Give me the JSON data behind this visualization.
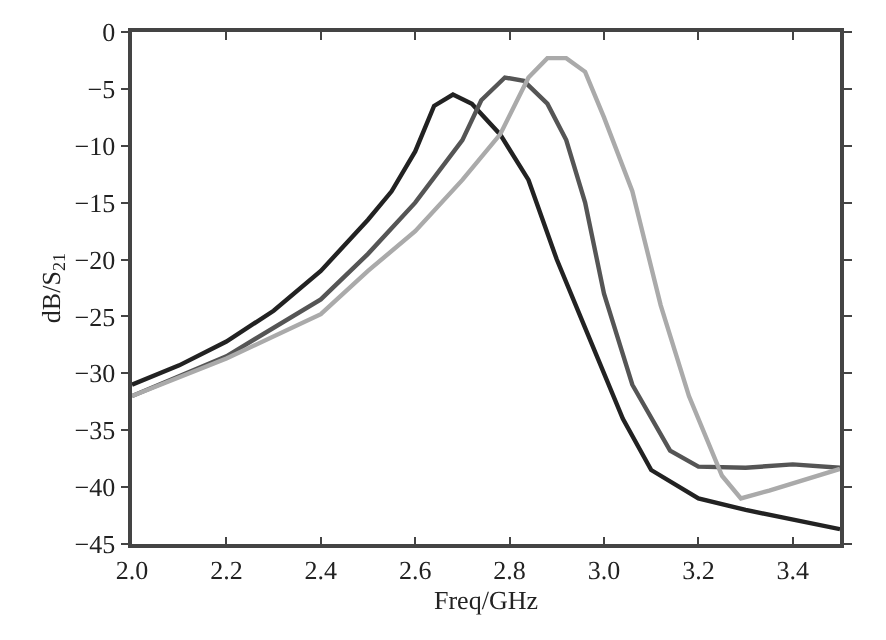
{
  "chart_data": {
    "type": "line",
    "xlabel": "Freq/GHz",
    "ylabel": "dB/S$_{21}$",
    "xlim": [
      2.0,
      3.5
    ],
    "ylim": [
      -45,
      0
    ],
    "xticks": [
      {
        "value": 2.0,
        "label": "2.0"
      },
      {
        "value": 2.2,
        "label": "2.2"
      },
      {
        "value": 2.4,
        "label": "2.4"
      },
      {
        "value": 2.6,
        "label": "2.6"
      },
      {
        "value": 2.8,
        "label": "2.8"
      },
      {
        "value": 3.0,
        "label": "3.0"
      },
      {
        "value": 3.2,
        "label": "3.2"
      },
      {
        "value": 3.4,
        "label": "3.4"
      }
    ],
    "yticks": [
      -45,
      -40,
      -35,
      -30,
      -25,
      -20,
      -15,
      -10,
      -5,
      0
    ],
    "grid": false,
    "marker": "none",
    "line_style": "solid",
    "series": [
      {
        "color": "#222222",
        "x": [
          2.0,
          2.1,
          2.2,
          2.3,
          2.4,
          2.5,
          2.55,
          2.6,
          2.64,
          2.68,
          2.72,
          2.78,
          2.84,
          2.9,
          2.96,
          3.04,
          3.1,
          3.2,
          3.3,
          3.5
        ],
        "values": [
          -31,
          -29.3,
          -27.2,
          -24.5,
          -21,
          -16.5,
          -14,
          -10.5,
          -6.5,
          -5.5,
          -6.3,
          -9,
          -13,
          -20,
          -26,
          -34,
          -38.5,
          -41,
          -42,
          -43.7
        ]
      },
      {
        "color": "#555555",
        "x": [
          2.0,
          2.2,
          2.4,
          2.5,
          2.6,
          2.7,
          2.74,
          2.79,
          2.83,
          2.88,
          2.92,
          2.96,
          3.0,
          3.06,
          3.14,
          3.2,
          3.3,
          3.4,
          3.5
        ],
        "values": [
          -32,
          -28.5,
          -23.5,
          -19.5,
          -15,
          -9.5,
          -6,
          -4,
          -4.3,
          -6.3,
          -9.5,
          -15,
          -23,
          -31,
          -36.8,
          -38.2,
          -38.3,
          -38,
          -38.3
        ]
      },
      {
        "color": "#aaaaaa",
        "x": [
          2.0,
          2.2,
          2.4,
          2.5,
          2.6,
          2.7,
          2.78,
          2.84,
          2.88,
          2.92,
          2.96,
          3.0,
          3.06,
          3.12,
          3.18,
          3.25,
          3.29,
          3.35,
          3.5
        ],
        "values": [
          -32,
          -28.7,
          -24.8,
          -21,
          -17.5,
          -13,
          -9,
          -4,
          -2.3,
          -2.3,
          -3.5,
          -7.5,
          -14,
          -24,
          -32,
          -39,
          -41,
          -40.3,
          -38.4
        ]
      }
    ]
  }
}
